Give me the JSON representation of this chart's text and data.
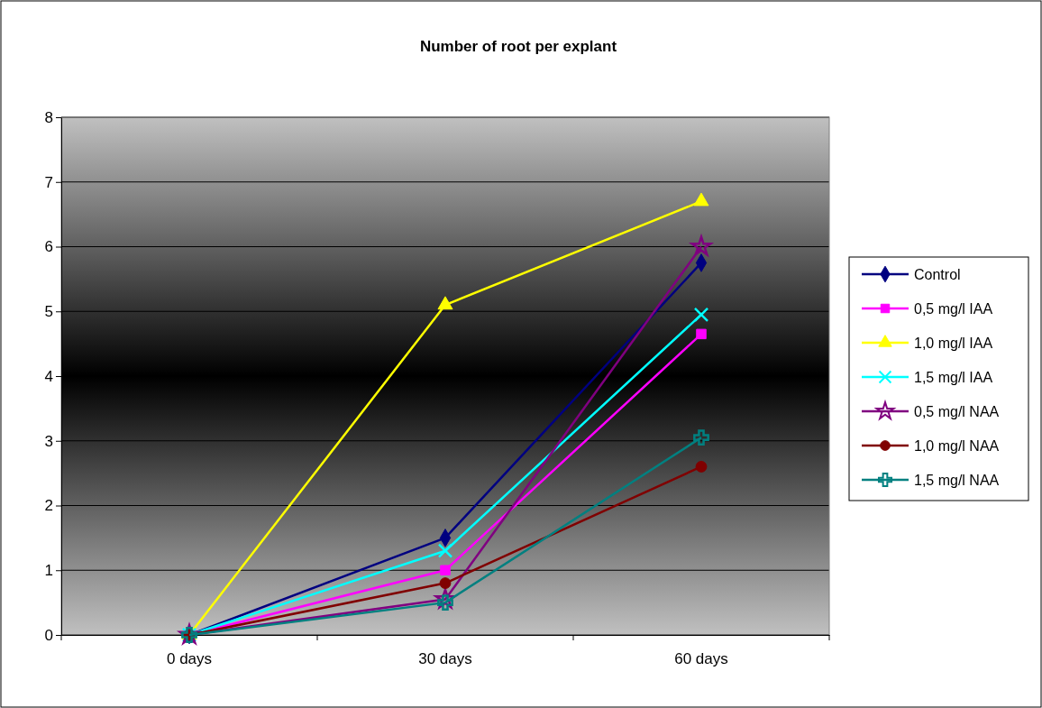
{
  "chart_data": {
    "type": "line",
    "title": "Number of root per explant",
    "categories": [
      "0 days",
      "30 days",
      "60 days"
    ],
    "series": [
      {
        "name": "Control",
        "color": "#000080",
        "marker": "diamond",
        "values": [
          0,
          1.5,
          5.75
        ]
      },
      {
        "name": "0,5 mg/l IAA",
        "color": "#ff00ff",
        "marker": "square",
        "values": [
          0,
          1.0,
          4.65
        ]
      },
      {
        "name": "1,0 mg/l IAA",
        "color": "#ffff00",
        "marker": "triangle",
        "values": [
          0,
          5.1,
          6.7
        ]
      },
      {
        "name": "1,5 mg/l IAA",
        "color": "#00ffff",
        "marker": "cross",
        "values": [
          0,
          1.3,
          4.95
        ]
      },
      {
        "name": "0,5 mg/l NAA",
        "color": "#800080",
        "marker": "star",
        "values": [
          0,
          0.55,
          6.0
        ]
      },
      {
        "name": "1,0 mg/l NAA",
        "color": "#800000",
        "marker": "circle",
        "values": [
          0,
          0.8,
          2.6
        ]
      },
      {
        "name": "1,5 mg/l NAA",
        "color": "#008080",
        "marker": "plus",
        "values": [
          0,
          0.5,
          3.05
        ]
      }
    ],
    "ylim": [
      0,
      8
    ],
    "yticks": [
      0,
      1,
      2,
      3,
      4,
      5,
      6,
      7,
      8
    ],
    "grid": "y",
    "legend": "right"
  }
}
